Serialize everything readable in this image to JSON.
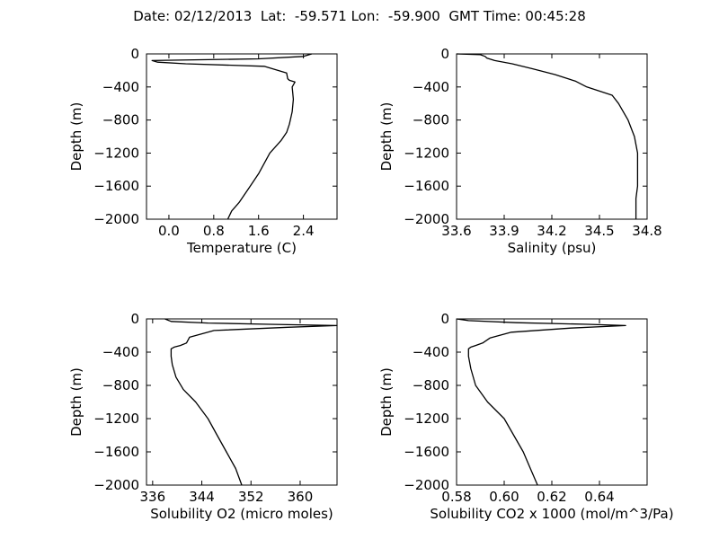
{
  "title": "Date: 02/12/2013  Lat:  -59.571 Lon:  -59.900  GMT Time: 00:45:28",
  "chart_data": [
    {
      "type": "line",
      "id": "temperature",
      "xlabel": "Temperature (C)",
      "ylabel": "Depth (m)",
      "xlim": [
        -0.4,
        3.0
      ],
      "ylim": [
        -2000,
        0
      ],
      "xticks": [
        0.0,
        0.8,
        1.6,
        2.4
      ],
      "xtick_labels": [
        "0.0",
        "0.8",
        "1.6",
        "2.4"
      ],
      "yticks": [
        0,
        -400,
        -800,
        -1200,
        -1600,
        -2000
      ],
      "ytick_labels": [
        "0",
        "−400",
        "−800",
        "−1200",
        "−1600",
        "−2000"
      ],
      "grid": false,
      "color": "#000000",
      "series": [
        {
          "x": [
            2.55,
            2.4,
            1.6,
            0.7,
            -0.3,
            -0.2,
            0.3,
            1.7,
            2.1,
            2.12,
            2.15,
            2.25,
            2.2,
            2.22,
            2.2,
            2.15,
            2.1,
            2.0,
            1.8,
            1.6,
            1.45,
            1.25,
            1.12,
            1.05
          ],
          "y": [
            0,
            -30,
            -60,
            -70,
            -80,
            -100,
            -120,
            -150,
            -230,
            -300,
            -320,
            -340,
            -400,
            -550,
            -700,
            -850,
            -950,
            -1050,
            -1200,
            -1450,
            -1600,
            -1800,
            -1900,
            -2000
          ]
        }
      ]
    },
    {
      "type": "line",
      "id": "salinity",
      "xlabel": "Salinity (psu)",
      "ylabel": "Depth (m)",
      "xlim": [
        33.6,
        34.8
      ],
      "ylim": [
        -2000,
        0
      ],
      "xticks": [
        33.6,
        33.9,
        34.2,
        34.5,
        34.8
      ],
      "xtick_labels": [
        "33.6",
        "33.9",
        "34.2",
        "34.5",
        "34.8"
      ],
      "yticks": [
        0,
        -400,
        -800,
        -1200,
        -1600,
        -2000
      ],
      "ytick_labels": [
        "0",
        "−400",
        "−800",
        "−1200",
        "−1600",
        "−2000"
      ],
      "grid": false,
      "color": "#000000",
      "series": [
        {
          "x": [
            33.6,
            33.75,
            33.78,
            33.79,
            33.84,
            33.95,
            34.08,
            34.22,
            34.35,
            34.42,
            34.5,
            34.58,
            34.62,
            34.68,
            34.72,
            34.74,
            34.74,
            34.73,
            34.73
          ],
          "y": [
            0,
            -10,
            -30,
            -50,
            -80,
            -120,
            -180,
            -250,
            -330,
            -400,
            -450,
            -500,
            -600,
            -800,
            -1000,
            -1200,
            -1600,
            -1750,
            -2000
          ]
        }
      ]
    },
    {
      "type": "line",
      "id": "solubility-o2",
      "xlabel": "Solubility O2 (micro moles)",
      "ylabel": "Depth (m)",
      "xlim": [
        335,
        366
      ],
      "ylim": [
        -2000,
        0
      ],
      "xticks": [
        336,
        344,
        352,
        360
      ],
      "xtick_labels": [
        "336",
        "344",
        "352",
        "360"
      ],
      "yticks": [
        0,
        -400,
        -800,
        -1200,
        -1600,
        -2000
      ],
      "ytick_labels": [
        "0",
        "−400",
        "−800",
        "−1200",
        "−1600",
        "−2000"
      ],
      "grid": false,
      "color": "#000000",
      "series": [
        {
          "x": [
            338,
            339,
            345,
            355,
            366,
            358,
            346,
            342,
            341.5,
            340.5,
            339.5,
            339,
            339,
            339.2,
            339.8,
            341,
            343,
            345,
            346.5,
            348,
            349.5,
            350.5
          ],
          "y": [
            0,
            -30,
            -50,
            -65,
            -80,
            -100,
            -140,
            -220,
            -290,
            -320,
            -340,
            -360,
            -450,
            -550,
            -700,
            -850,
            -1000,
            -1200,
            -1400,
            -1600,
            -1800,
            -2000
          ]
        }
      ]
    },
    {
      "type": "line",
      "id": "solubility-co2",
      "xlabel": "Solubility CO2 x 1000 (mol/m^3/Pa)",
      "ylabel": "Depth (m)",
      "xlim": [
        0.58,
        0.66
      ],
      "ylim": [
        -2000,
        0
      ],
      "xticks": [
        0.58,
        0.6,
        0.62,
        0.64
      ],
      "xtick_labels": [
        "0.58",
        "0.60",
        "0.62",
        "0.64"
      ],
      "yticks": [
        0,
        -400,
        -800,
        -1200,
        -1600,
        -2000
      ],
      "ytick_labels": [
        "0",
        "−400",
        "−800",
        "−1200",
        "−1600",
        "−2000"
      ],
      "grid": false,
      "color": "#000000",
      "series": [
        {
          "x": [
            0.58,
            0.585,
            0.605,
            0.635,
            0.651,
            0.628,
            0.603,
            0.594,
            0.591,
            0.588,
            0.586,
            0.585,
            0.585,
            0.586,
            0.588,
            0.593,
            0.6,
            0.604,
            0.608,
            0.611,
            0.614
          ],
          "y": [
            0,
            -20,
            -45,
            -65,
            -80,
            -110,
            -160,
            -230,
            -290,
            -320,
            -340,
            -360,
            -450,
            -600,
            -800,
            -1000,
            -1200,
            -1400,
            -1600,
            -1800,
            -2000
          ]
        }
      ]
    }
  ]
}
